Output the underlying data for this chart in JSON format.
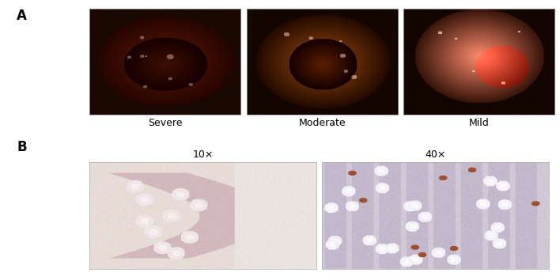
{
  "figure_width": 7.08,
  "figure_height": 3.54,
  "dpi": 100,
  "bg_color": "#ffffff",
  "panel_A_label": "A",
  "panel_B_label": "B",
  "label_fontsize": 12,
  "label_fontweight": "bold",
  "captions_A": [
    "Severe",
    "Moderate",
    "Mild"
  ],
  "captions_B": [
    "10×",
    "40×"
  ],
  "caption_fontsize": 9
}
